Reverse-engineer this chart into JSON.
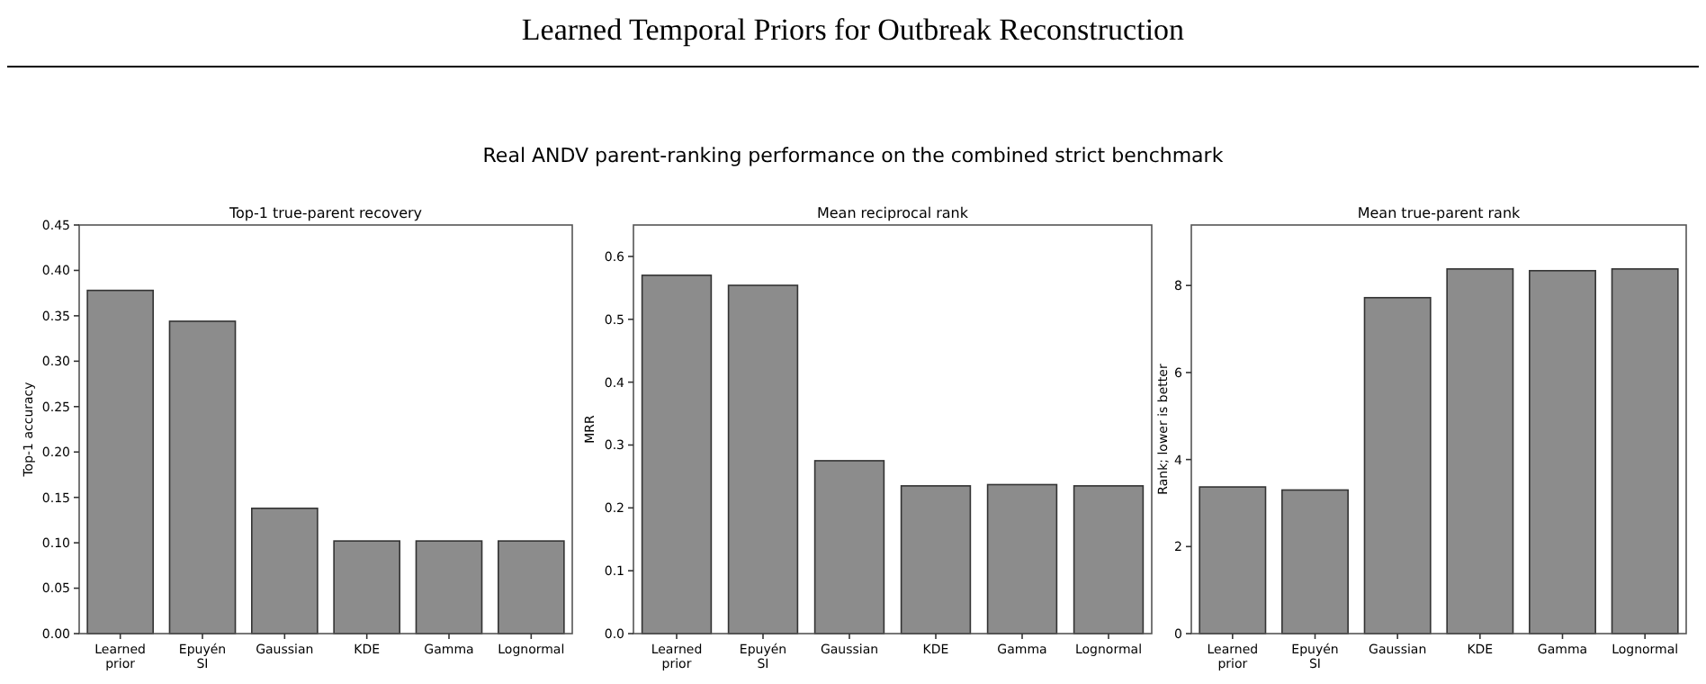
{
  "chart_data": [
    {
      "type": "other",
      "title": "Learned Temporal Priors for Outbreak Reconstruction",
      "subtitle": "Real ANDV parent-ranking performance on the combined strict benchmark"
    },
    {
      "type": "bar",
      "title": "Top-1 true-parent recovery",
      "ylabel": "Top-1 accuracy",
      "categories": [
        "Learned\nprior",
        "Epuyén\nSI",
        "Gaussian",
        "KDE",
        "Gamma",
        "Lognormal"
      ],
      "values": [
        0.378,
        0.344,
        0.138,
        0.102,
        0.102,
        0.102
      ],
      "color": "#8c8c8c",
      "ylim": [
        0,
        0.45
      ],
      "yticks": [
        {
          "value": 0,
          "label": "0.00"
        },
        {
          "value": 0.05,
          "label": "0.05"
        },
        {
          "value": 0.1,
          "label": "0.10"
        },
        {
          "value": 0.15,
          "label": "0.15"
        },
        {
          "value": 0.2,
          "label": "0.20"
        },
        {
          "value": 0.25,
          "label": "0.25"
        },
        {
          "value": 0.3,
          "label": "0.30"
        },
        {
          "value": 0.35,
          "label": "0.35"
        },
        {
          "value": 0.4,
          "label": "0.40"
        },
        {
          "value": 0.45,
          "label": "0.45"
        }
      ],
      "grid": false
    },
    {
      "type": "bar",
      "title": "Mean reciprocal rank",
      "ylabel": "MRR",
      "categories": [
        "Learned\nprior",
        "Epuyén\nSI",
        "Gaussian",
        "KDE",
        "Gamma",
        "Lognormal"
      ],
      "values": [
        0.57,
        0.554,
        0.275,
        0.235,
        0.237,
        0.235
      ],
      "color": "#8c8c8c",
      "ylim": [
        0,
        0.65
      ],
      "yticks": [
        {
          "value": 0,
          "label": "0.0"
        },
        0.1,
        0.2,
        0.3,
        0.4,
        0.5,
        0.6
      ],
      "grid": false
    },
    {
      "type": "bar",
      "title": "Mean true-parent rank",
      "ylabel": "Rank; lower is better",
      "categories": [
        "Learned\nprior",
        "Epuyén\nSI",
        "Gaussian",
        "KDE",
        "Gamma",
        "Lognormal"
      ],
      "values": [
        3.37,
        3.3,
        7.72,
        8.38,
        8.34,
        8.38
      ],
      "color": "#8c8c8c",
      "ylim": [
        0,
        9.39
      ],
      "yticks": [
        0,
        2,
        4,
        6,
        8
      ],
      "grid": false
    }
  ]
}
